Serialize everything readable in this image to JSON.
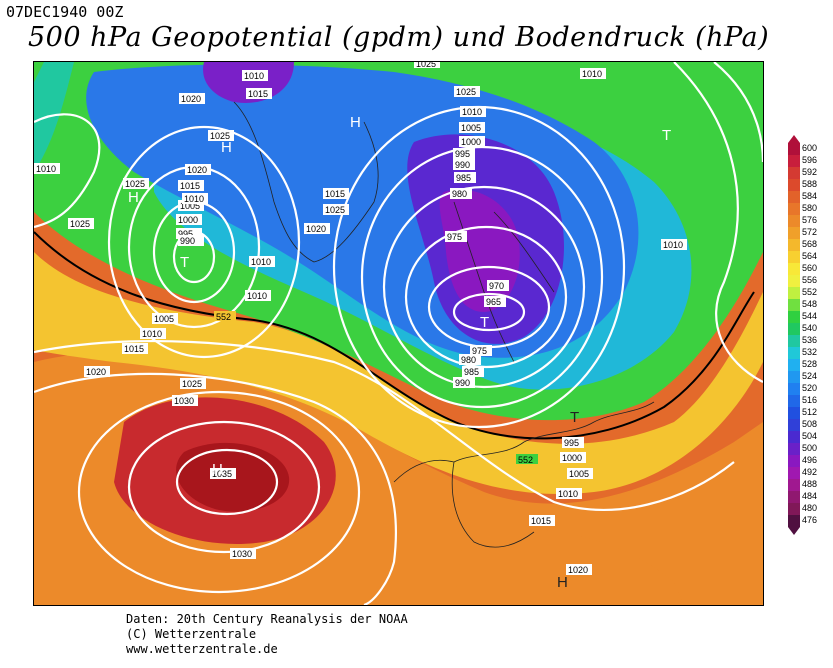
{
  "header": {
    "date": "07DEC1940 00Z",
    "title": "500 hPa Geopotential (gpdm) und Bodendruck (hPa)"
  },
  "credits": {
    "line1": "Daten: 20th Century Reanalysis der NOAA",
    "line2": "(C) Wetterzentrale",
    "line3": "www.wetterzentrale.de"
  },
  "legend": {
    "values": [
      "600",
      "596",
      "592",
      "588",
      "584",
      "580",
      "576",
      "572",
      "568",
      "564",
      "560",
      "556",
      "552",
      "548",
      "544",
      "540",
      "536",
      "532",
      "528",
      "524",
      "520",
      "516",
      "512",
      "508",
      "504",
      "500",
      "496",
      "492",
      "488",
      "484",
      "480",
      "476"
    ],
    "colors": [
      "#b0103a",
      "#c81e3c",
      "#d43a32",
      "#dc4a2c",
      "#e2622a",
      "#e8762a",
      "#ec8a2a",
      "#f0a02a",
      "#f4b82c",
      "#f8d030",
      "#f8e838",
      "#f0f040",
      "#c0f040",
      "#70e040",
      "#30d040",
      "#20c860",
      "#20c8a0",
      "#20c8d8",
      "#20b0f0",
      "#2098f0",
      "#2080f0",
      "#2068e8",
      "#2050e0",
      "#3040d8",
      "#4a2ad0",
      "#6a20c8",
      "#8a18c0",
      "#a018b0",
      "#a01890",
      "#901870",
      "#801858",
      "#501040"
    ]
  },
  "map": {
    "highs": [
      {
        "label": "H",
        "name": "high-azores"
      },
      {
        "label": "H",
        "name": "high-greenland"
      },
      {
        "label": "H",
        "name": "high-baffin"
      },
      {
        "label": "H",
        "name": "high-canada"
      },
      {
        "label": "H",
        "name": "high-north-africa"
      }
    ],
    "lows": [
      {
        "label": "T",
        "name": "low-scandinavia"
      },
      {
        "label": "T",
        "name": "low-labrador"
      },
      {
        "label": "T",
        "name": "low-russia"
      },
      {
        "label": "T",
        "name": "low-balkans"
      }
    ],
    "isobar_labels": [
      "1025",
      "1010",
      "1015",
      "1020",
      "1025",
      "1015",
      "1010",
      "1005",
      "1000",
      "995",
      "990",
      "1025",
      "1010",
      "1015",
      "1020",
      "1025",
      "1030",
      "1035",
      "1030",
      "1025",
      "1015",
      "1020",
      "1010",
      "1010",
      "1015",
      "1020",
      "1025",
      "1015",
      "1010",
      "1005",
      "1000",
      "995",
      "990",
      "985",
      "980",
      "975",
      "970",
      "965",
      "975",
      "980",
      "985",
      "990",
      "995",
      "1000",
      "1005",
      "1010",
      "1015",
      "1020",
      "1010",
      "1010",
      "1010",
      "1020",
      "1015",
      "1010"
    ],
    "line_552": "552",
    "line_552_b": "552"
  }
}
